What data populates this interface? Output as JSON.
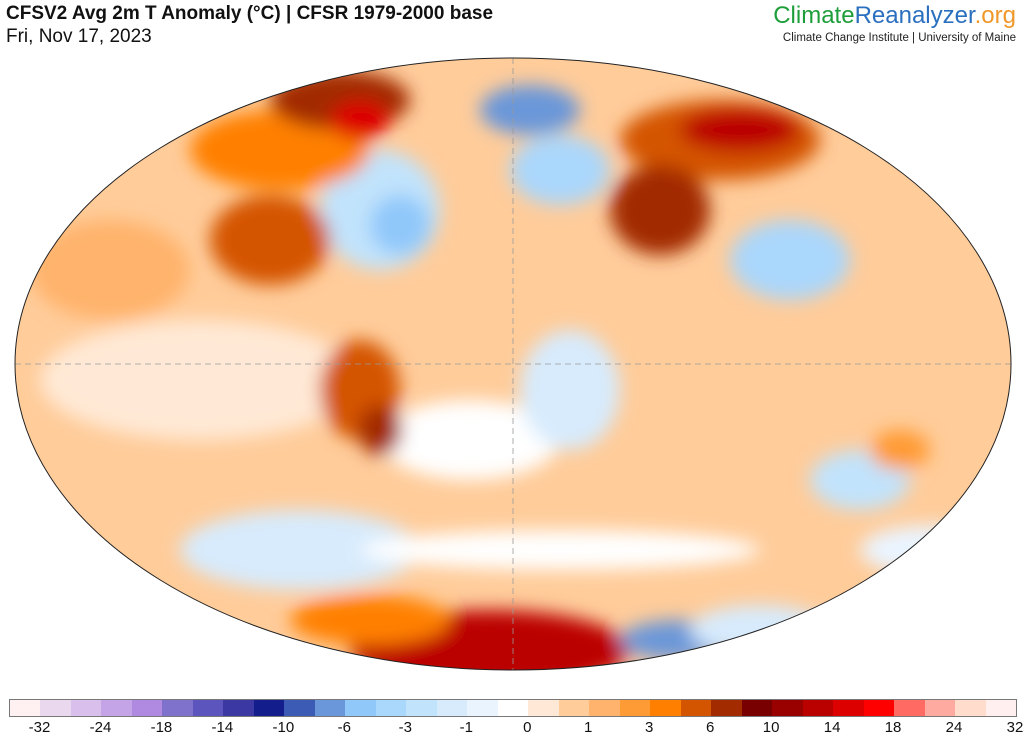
{
  "header": {
    "title": "CFSV2 Avg 2m T Anomaly (°C) | CFSR 1979-2000 base",
    "date": "Fri, Nov 17, 2023"
  },
  "brand": {
    "part1": "Climate",
    "part2": "Reanalyzer",
    ".org": ".org",
    "subtitle": "Climate Change Institute | University of Maine",
    "colors": {
      "climate": "#1e9e3a",
      "reanalyzer": "#2b6fbf",
      "org": "#f0982a"
    }
  },
  "legend": {
    "colors": [
      "#fff0f2",
      "#ead8ee",
      "#d9bfeb",
      "#c4a3e6",
      "#b08ae0",
      "#7e72cc",
      "#5c55bd",
      "#3b37a3",
      "#131e8c",
      "#3b5bb5",
      "#6a97d9",
      "#90c8fa",
      "#aad7fc",
      "#c1e3fc",
      "#d7ebfd",
      "#eaf4ff",
      "#ffffff",
      "#ffe9d6",
      "#ffcc9a",
      "#ffb36c",
      "#ff9b35",
      "#ff8000",
      "#d45500",
      "#a22b00",
      "#780000",
      "#990000",
      "#bb0000",
      "#dd0000",
      "#ff0000",
      "#ff6b63",
      "#ffaaa0",
      "#ffdccc",
      "#fff0ef"
    ],
    "labels": [
      "-32",
      "-24",
      "-18",
      "-14",
      "-10",
      "-6",
      "-3",
      "-1",
      "0",
      "1",
      "3",
      "6",
      "10",
      "14",
      "18",
      "24",
      "32"
    ]
  },
  "map": {
    "projection": "Winkel Tripel (global)",
    "variable": "2m temperature anomaly"
  }
}
